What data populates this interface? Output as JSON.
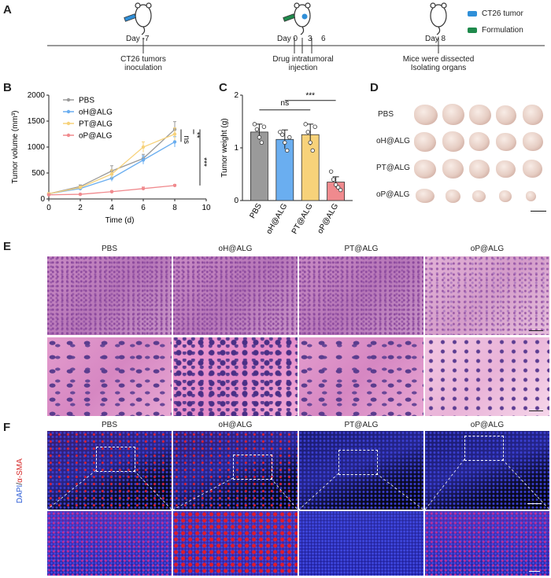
{
  "panel_labels": {
    "a": "A",
    "b": "B",
    "c": "C",
    "d": "D",
    "e": "E",
    "f": "F"
  },
  "timeline": {
    "days": [
      "Day -7",
      "Day 0",
      "3",
      "6",
      "Day 8"
    ],
    "events": [
      "CT26 tumors\ninoculation",
      "Drug intratumoral\ninjection",
      "Mice were dissected\nIsolating organs"
    ],
    "legend": [
      {
        "label": "CT26 tumor",
        "color": "#2f8fd8"
      },
      {
        "label": "Formulation",
        "color": "#1f8a4c"
      }
    ]
  },
  "groups": [
    "PBS",
    "oH@ALG",
    "PT@ALG",
    "oP@ALG"
  ],
  "colors": {
    "PBS": "#9a9a9a",
    "oH@ALG": "#6aaef0",
    "PT@ALG": "#f7d27a",
    "oP@ALG": "#f08a8e"
  },
  "significance": {
    "b": [
      "ns",
      "**",
      "***"
    ],
    "c": [
      "ns",
      "***"
    ]
  },
  "panel_e_headers": [
    "PBS",
    "oH@ALG",
    "PT@ALG",
    "oP@ALG"
  ],
  "panel_f_headers": [
    "PBS",
    "oH@ALG",
    "PT@ALG",
    "oP@ALG"
  ],
  "panel_f_ylabel_dapi": "DAPI",
  "panel_f_ylabel_sep": "/",
  "panel_f_ylabel_sma": "α-SMA",
  "chart_data": [
    {
      "type": "line",
      "xlabel": "Time (d)",
      "ylabel": "Tumor volume (mm³)",
      "xlim": [
        0,
        10
      ],
      "ylim": [
        0,
        2000
      ],
      "xticks": [
        0,
        2,
        4,
        6,
        8,
        10
      ],
      "yticks": [
        0,
        500,
        1000,
        1500,
        2000
      ],
      "x": [
        0,
        2,
        4,
        6,
        8
      ],
      "series": [
        {
          "name": "PBS",
          "values": [
            100,
            240,
            540,
            780,
            1340
          ],
          "err": [
            20,
            30,
            100,
            80,
            150
          ]
        },
        {
          "name": "oH@ALG",
          "values": [
            100,
            200,
            400,
            750,
            1100
          ],
          "err": [
            20,
            30,
            60,
            80,
            100
          ]
        },
        {
          "name": "PT@ALG",
          "values": [
            100,
            220,
            480,
            1000,
            1250
          ],
          "err": [
            20,
            30,
            80,
            100,
            120
          ]
        },
        {
          "name": "oP@ALG",
          "values": [
            80,
            90,
            140,
            200,
            260
          ],
          "err": [
            10,
            15,
            20,
            30,
            20
          ]
        }
      ],
      "legend": "top-left"
    },
    {
      "type": "bar",
      "ylabel": "Tumor weight (g)",
      "ylim": [
        0,
        2
      ],
      "yticks": [
        0,
        1,
        2
      ],
      "categories": [
        "PBS",
        "oH@ALG",
        "PT@ALG",
        "oP@ALG"
      ],
      "values": [
        1.3,
        1.16,
        1.25,
        0.35
      ],
      "err": [
        0.15,
        0.18,
        0.2,
        0.1
      ],
      "points": [
        [
          1.45,
          1.35,
          1.2,
          1.1,
          1.4
        ],
        [
          1.3,
          1.25,
          1.1,
          0.95,
          1.2
        ],
        [
          1.45,
          1.3,
          1.1,
          0.95,
          1.4
        ],
        [
          0.55,
          0.4,
          0.3,
          0.25,
          0.2
        ]
      ]
    }
  ]
}
